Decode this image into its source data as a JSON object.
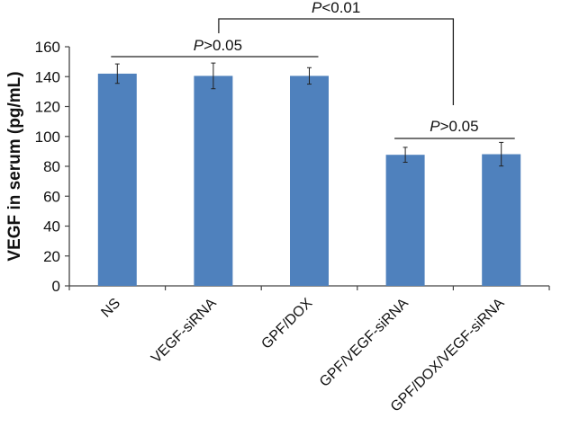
{
  "chart_data": {
    "type": "bar",
    "title": "",
    "xlabel": "",
    "ylabel": "VEGF in serum (pg/mL)",
    "ylim": [
      0,
      160
    ],
    "yticks": [
      0,
      20,
      40,
      60,
      80,
      100,
      120,
      140,
      160
    ],
    "categories": [
      "NS",
      "VEGF-siRNA",
      "GPF/DOX",
      "GPF/VEGF-siRNA",
      "GPF/DOX/VEGF-siRNA"
    ],
    "values": [
      142,
      140.5,
      140.5,
      87.7,
      88.1
    ],
    "errors": [
      6.5,
      8.6,
      5.5,
      5,
      7.9
    ],
    "bar_color": "#4f81bd",
    "grid": false,
    "annotations": [
      {
        "prefix": "P",
        "text": ">0.05",
        "from": 0,
        "to": 2,
        "level": 150
      },
      {
        "prefix": "P",
        "text": "<0.01",
        "from": 1,
        "to": 3.5,
        "level": 190
      },
      {
        "prefix": "P",
        "text": ">0.05",
        "from": 3,
        "to": 4,
        "level": 99
      }
    ]
  }
}
